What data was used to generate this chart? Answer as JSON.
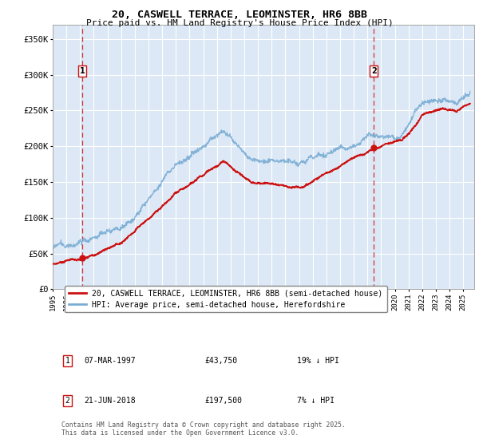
{
  "title": "20, CASWELL TERRACE, LEOMINSTER, HR6 8BB",
  "subtitle": "Price paid vs. HM Land Registry's House Price Index (HPI)",
  "bg_color": "#ffffff",
  "plot_bg_color": "#dce8f5",
  "grid_color": "#ffffff",
  "hpi_color": "#7aadd4",
  "price_color": "#cc1111",
  "marker_color": "#cc1111",
  "ylim": [
    0,
    370000
  ],
  "xlim_start": 1995.0,
  "xlim_end": 2025.8,
  "yticks": [
    0,
    50000,
    100000,
    150000,
    200000,
    250000,
    300000,
    350000
  ],
  "ytick_labels": [
    "£0",
    "£50K",
    "£100K",
    "£150K",
    "£200K",
    "£250K",
    "£300K",
    "£350K"
  ],
  "xticks": [
    1995,
    1996,
    1997,
    1998,
    1999,
    2000,
    2001,
    2002,
    2003,
    2004,
    2005,
    2006,
    2007,
    2008,
    2009,
    2010,
    2011,
    2012,
    2013,
    2014,
    2015,
    2016,
    2017,
    2018,
    2019,
    2020,
    2021,
    2022,
    2023,
    2024,
    2025
  ],
  "sale1_x": 1997.18,
  "sale1_y": 43750,
  "sale2_x": 2018.47,
  "sale2_y": 197500,
  "legend_line1": "20, CASWELL TERRACE, LEOMINSTER, HR6 8BB (semi-detached house)",
  "legend_line2": "HPI: Average price, semi-detached house, Herefordshire",
  "row1_num": "1",
  "row1_date": "07-MAR-1997",
  "row1_price": "£43,750",
  "row1_hpi": "19% ↓ HPI",
  "row2_num": "2",
  "row2_date": "21-JUN-2018",
  "row2_price": "£197,500",
  "row2_hpi": "7% ↓ HPI",
  "footnote": "Contains HM Land Registry data © Crown copyright and database right 2025.\nThis data is licensed under the Open Government Licence v3.0.",
  "figsize": [
    6.0,
    5.6
  ],
  "dpi": 100
}
